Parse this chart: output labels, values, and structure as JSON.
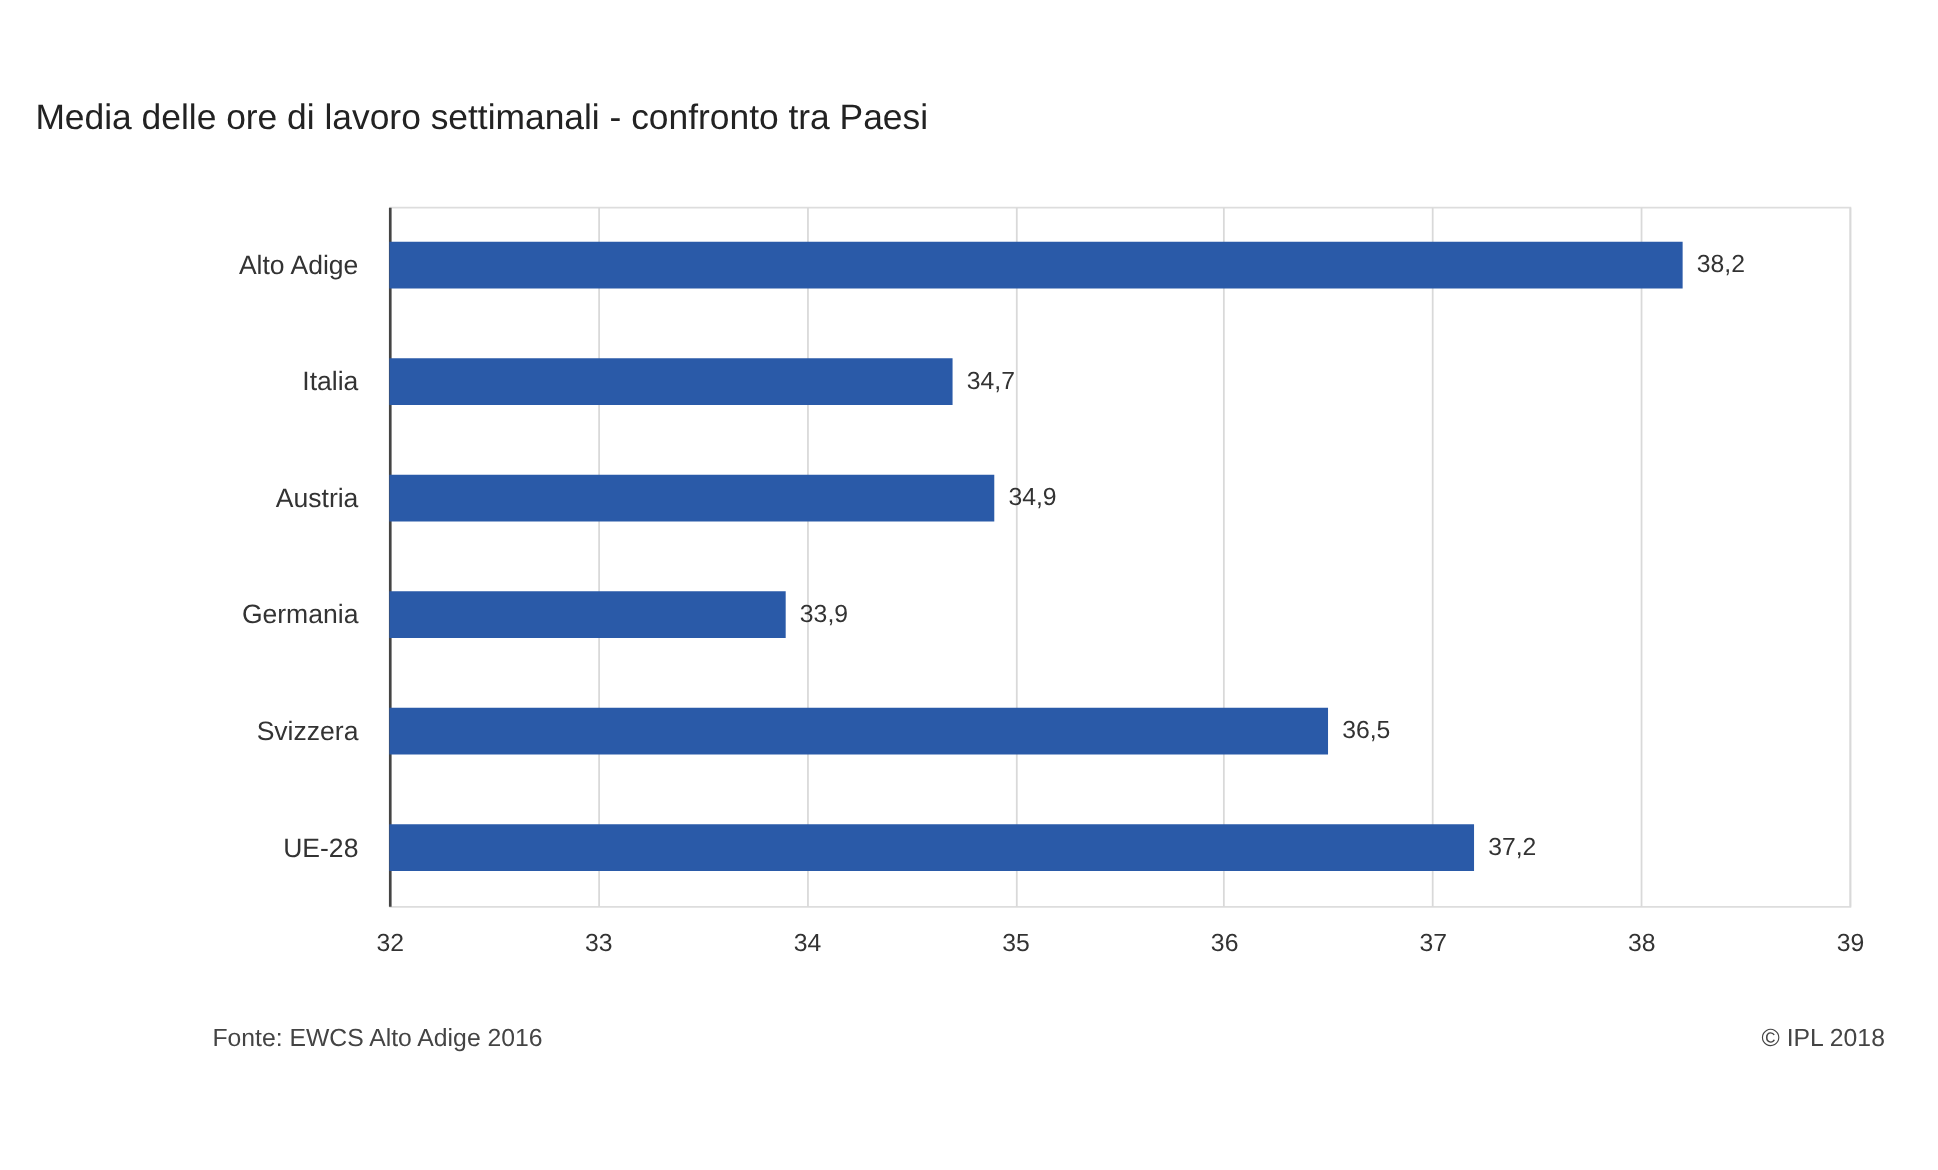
{
  "chart_data": {
    "type": "bar",
    "orientation": "horizontal",
    "title": "Media delle ore di lavoro settimanali - confronto tra Paesi",
    "categories": [
      "Alto Adige",
      "Italia",
      "Austria",
      "Germania",
      "Svizzera",
      "UE-28"
    ],
    "values": [
      38.2,
      34.7,
      34.9,
      33.9,
      36.5,
      37.2
    ],
    "value_labels": [
      "38,2",
      "34,7",
      "34,9",
      "33,9",
      "36,5",
      "37,2"
    ],
    "color": "#2a5aa8",
    "xlim": [
      32,
      39
    ],
    "xticks": [
      32,
      33,
      34,
      35,
      36,
      37,
      38,
      39
    ],
    "grid": "x",
    "annotations": [
      "Fonte: EWCS Alto Adige 2016",
      "© IPL 2018"
    ]
  }
}
